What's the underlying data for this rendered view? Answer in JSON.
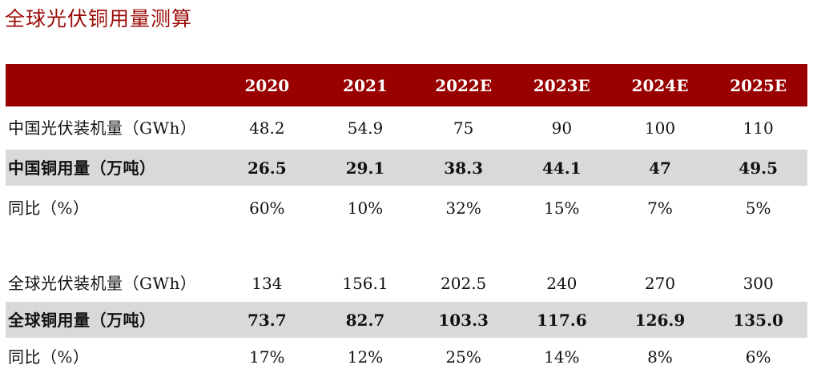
{
  "page": {
    "title": "全球光伏铜用量测算"
  },
  "colors": {
    "title_text": "#9a0b07",
    "header_bg": "#990000",
    "header_text": "#ffffff",
    "highlight_row_bg": "#d9d9d9",
    "body_text": "#111111"
  },
  "table": {
    "columns": [
      "2020",
      "2021",
      "2022E",
      "2023E",
      "2024E",
      "2025E"
    ],
    "rows": [
      {
        "label": "中国光伏装机量（GWh）",
        "values": [
          "48.2",
          "54.9",
          "75",
          "90",
          "100",
          "110"
        ]
      },
      {
        "label": "中国铜用量（万吨）",
        "values": [
          "26.5",
          "29.1",
          "38.3",
          "44.1",
          "47",
          "49.5"
        ],
        "highlight": true
      },
      {
        "label": "同比（%）",
        "values": [
          "60%",
          "10%",
          "32%",
          "15%",
          "7%",
          "5%"
        ]
      },
      {
        "label": "",
        "values": [
          "",
          "",
          "",
          "",
          "",
          ""
        ]
      },
      {
        "label": "全球光伏装机量（GWh）",
        "values": [
          "134",
          "156.1",
          "202.5",
          "240",
          "270",
          "300"
        ]
      },
      {
        "label": "全球铜用量（万吨）",
        "values": [
          "73.7",
          "82.7",
          "103.3",
          "117.6",
          "126.9",
          "135.0"
        ],
        "highlight": true
      },
      {
        "label": "同比（%）",
        "values": [
          "17%",
          "12%",
          "25%",
          "14%",
          "8%",
          "6%"
        ]
      }
    ]
  }
}
